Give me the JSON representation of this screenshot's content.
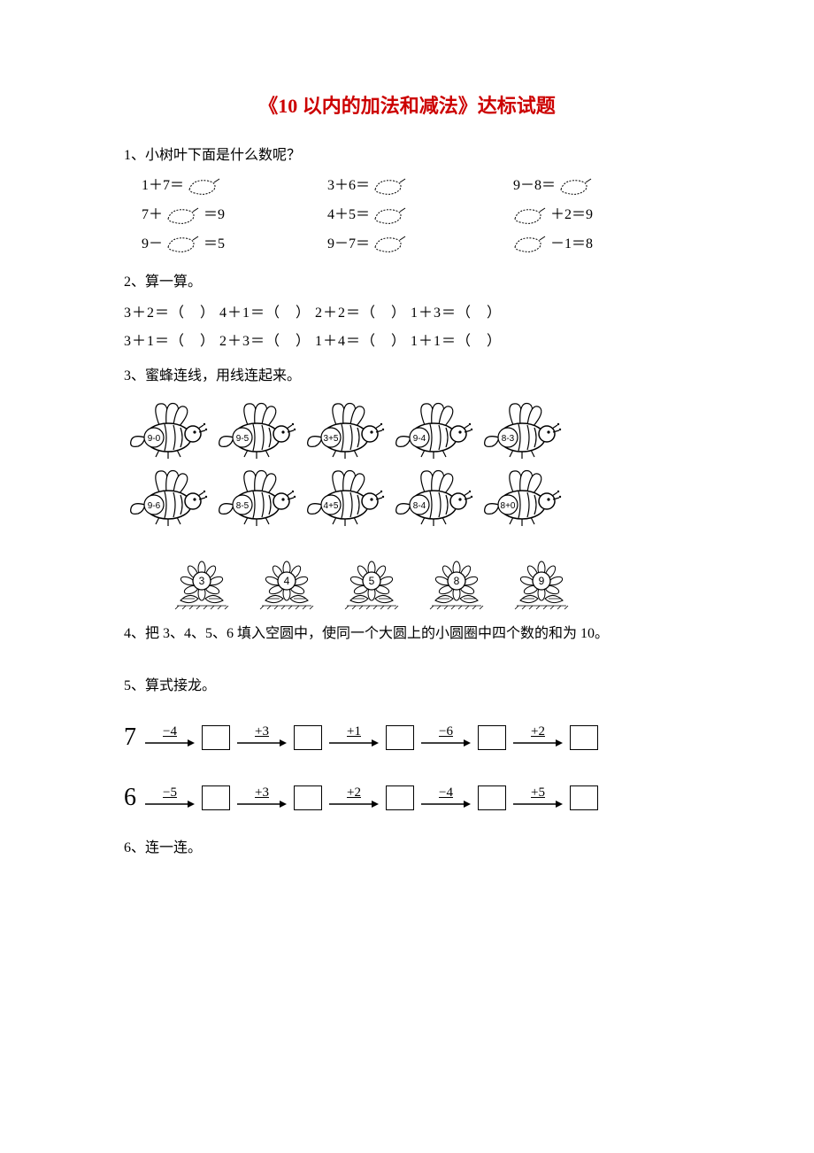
{
  "title": "《10 以内的加法和减法》达标试题",
  "q1": {
    "prompt": "1、小树叶下面是什么数呢？",
    "rows": [
      [
        {
          "pre": "1＋7＝",
          "leaf": true,
          "post": ""
        },
        {
          "pre": "3＋6＝",
          "leaf": true,
          "post": ""
        },
        {
          "pre": "9－8＝",
          "leaf": true,
          "post": ""
        }
      ],
      [
        {
          "pre": "7＋",
          "leaf": true,
          "post": "＝9"
        },
        {
          "pre": "4＋5＝",
          "leaf": true,
          "post": ""
        },
        {
          "pre": "",
          "leaf": true,
          "post": "＋2＝9"
        }
      ],
      [
        {
          "pre": "9－",
          "leaf": true,
          "post": "＝5"
        },
        {
          "pre": "9－7＝",
          "leaf": true,
          "post": ""
        },
        {
          "pre": "",
          "leaf": true,
          "post": "－1＝8"
        }
      ]
    ]
  },
  "q2": {
    "prompt": "2、算一算。",
    "rows": [
      "3＋2＝（　）  4＋1＝（　）  2＋2＝（　）  1＋3＝（　）",
      "3＋1＝（　）  2＋3＝（　）  1＋4＝（　）  1＋1＝（　）"
    ]
  },
  "q3": {
    "prompt": "3、蜜蜂连线，用线连起来。",
    "bees": [
      [
        "9-0",
        "9-5",
        "3+5",
        "9-4",
        "8-3"
      ],
      [
        "9-6",
        "8-5",
        "4+5",
        "8-4",
        "8+0"
      ]
    ],
    "flowers": [
      "3",
      "4",
      "5",
      "8",
      "9"
    ]
  },
  "q4": {
    "prompt": "4、把 3、4、5、6 填入空圆中，使同一个大圆上的小圆圈中四个数的和为 10。"
  },
  "q5": {
    "prompt": "5、算式接龙。",
    "chains": [
      {
        "start": "7",
        "ops": [
          "-4",
          "+3",
          "+1",
          "-6",
          "+2"
        ]
      },
      {
        "start": "6",
        "ops": [
          "-5",
          "+3",
          "+2",
          "-4",
          "+5"
        ]
      }
    ]
  },
  "q6": {
    "prompt": "6、连一连。"
  },
  "colors": {
    "title": "#cc0000",
    "text": "#000000",
    "bg": "#ffffff"
  }
}
